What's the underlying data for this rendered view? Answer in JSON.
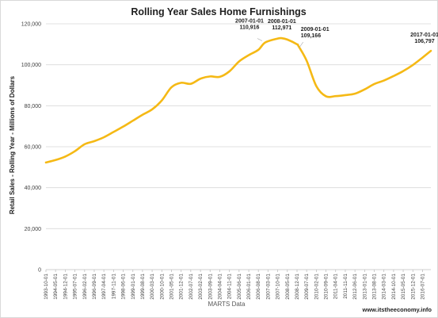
{
  "chart_data": {
    "type": "line",
    "title": "Rolling Year Sales Home Furnishings",
    "ylabel": "Retail Sales - Rolling Year - Millions of Dollars",
    "xlabel": "MARTS Data",
    "source_note": "www.itstheeconomy.info",
    "ylim": [
      0,
      120000
    ],
    "y_ticks": [
      {
        "value": 0,
        "label": "0"
      },
      {
        "value": 20000,
        "label": "20,000"
      },
      {
        "value": 40000,
        "label": "40,000"
      },
      {
        "value": 60000,
        "label": "60,000"
      },
      {
        "value": 80000,
        "label": "80,000"
      },
      {
        "value": 100000,
        "label": "100,000"
      },
      {
        "value": 120000,
        "label": "120,000"
      }
    ],
    "x_ticks": [
      "1993-10-01",
      "1994-05-01",
      "1994-12-01",
      "1995-07-01",
      "1996-02-01",
      "1996-09-01",
      "1997-04-01",
      "1997-11-01",
      "1998-06-01",
      "1999-01-01",
      "1999-08-01",
      "2000-03-01",
      "2000-10-01",
      "2001-05-01",
      "2001-12-01",
      "2002-07-01",
      "2003-02-01",
      "2003-09-01",
      "2004-04-01",
      "2004-11-01",
      "2005-06-01",
      "2006-01-01",
      "2006-08-01",
      "2007-03-01",
      "2007-10-01",
      "2008-05-01",
      "2008-12-01",
      "2009-07-01",
      "2010-02-01",
      "2010-09-01",
      "2011-04-01",
      "2011-11-01",
      "2012-06-01",
      "2013-01-01",
      "2013-08-01",
      "2014-03-01",
      "2014-10-01",
      "2015-05-01",
      "2015-12-01",
      "2016-07-01"
    ],
    "x_range": [
      "1993-10-01",
      "2017-01-01"
    ],
    "grid": {
      "horizontal": true,
      "vertical": false
    },
    "line_color": "#f5b915",
    "series": [
      {
        "points": [
          [
            "1993-10-01",
            52300
          ],
          [
            "1994-05-01",
            53500
          ],
          [
            "1994-12-01",
            55200
          ],
          [
            "1995-07-01",
            57800
          ],
          [
            "1996-02-01",
            61200
          ],
          [
            "1996-09-01",
            62700
          ],
          [
            "1997-04-01",
            64600
          ],
          [
            "1997-11-01",
            67200
          ],
          [
            "1998-06-01",
            69800
          ],
          [
            "1999-01-01",
            72700
          ],
          [
            "1999-08-01",
            75600
          ],
          [
            "2000-03-01",
            78200
          ],
          [
            "2000-10-01",
            82600
          ],
          [
            "2001-05-01",
            89000
          ],
          [
            "2001-12-01",
            91200
          ],
          [
            "2002-07-01",
            90700
          ],
          [
            "2003-02-01",
            93200
          ],
          [
            "2003-09-01",
            94300
          ],
          [
            "2004-04-01",
            94100
          ],
          [
            "2004-11-01",
            96800
          ],
          [
            "2005-06-01",
            101600
          ],
          [
            "2006-01-01",
            104700
          ],
          [
            "2006-08-01",
            107300
          ],
          [
            "2007-01-01",
            110916
          ],
          [
            "2007-10-01",
            112800
          ],
          [
            "2008-01-01",
            112971
          ],
          [
            "2008-05-01",
            112300
          ],
          [
            "2008-12-01",
            110000
          ],
          [
            "2009-01-01",
            109166
          ],
          [
            "2009-07-01",
            102000
          ],
          [
            "2010-02-01",
            89500
          ],
          [
            "2010-09-01",
            84600
          ],
          [
            "2011-04-01",
            84700
          ],
          [
            "2011-11-01",
            85200
          ],
          [
            "2012-06-01",
            85900
          ],
          [
            "2013-01-01",
            88000
          ],
          [
            "2013-08-01",
            90600
          ],
          [
            "2014-03-01",
            92300
          ],
          [
            "2014-10-01",
            94500
          ],
          [
            "2015-05-01",
            96900
          ],
          [
            "2015-12-01",
            99900
          ],
          [
            "2016-07-01",
            103500
          ],
          [
            "2017-01-01",
            106797
          ]
        ]
      }
    ],
    "annotations": [
      {
        "date": "2007-01-01",
        "value": 110916,
        "date_label": "2007-01-01",
        "value_label": "110,916",
        "side": "left"
      },
      {
        "date": "2008-01-01",
        "value": 112971,
        "date_label": "2008-01-01",
        "value_label": "112,971",
        "side": "above"
      },
      {
        "date": "2009-01-01",
        "value": 109166,
        "date_label": "2009-01-01",
        "value_label": "109,166",
        "side": "right"
      },
      {
        "date": "2017-01-01",
        "value": 106797,
        "date_label": "2017-01-01",
        "value_label": "106,797",
        "side": "above-left"
      }
    ]
  }
}
